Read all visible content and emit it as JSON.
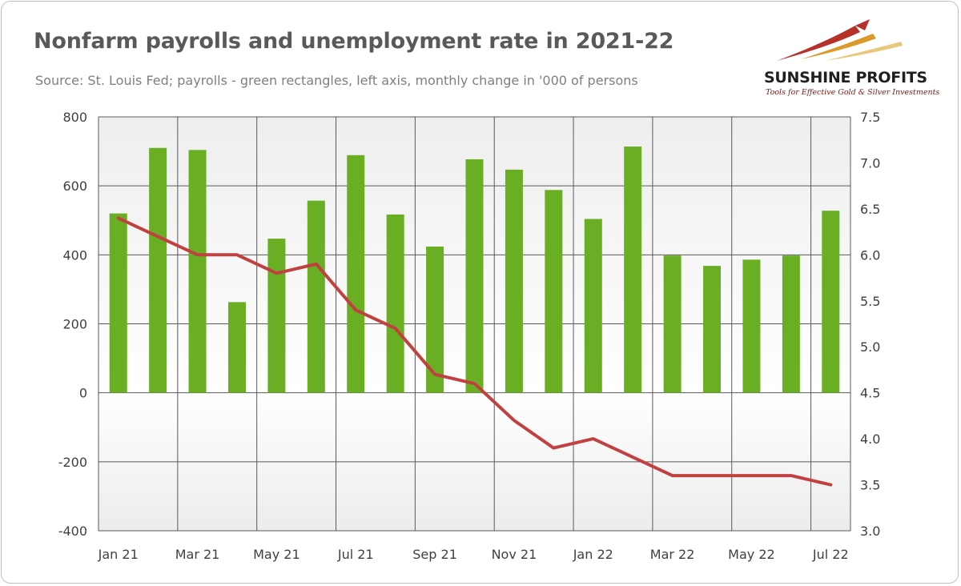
{
  "header": {
    "title": "Nonfarm payrolls and unemployment rate in 2021-22",
    "subtitle": "Source: St. Louis Fed; payrolls - green rectangles, left axis, monthly change in '000 of persons"
  },
  "logo": {
    "name": "SUNSHINE PROFITS",
    "tagline": "Tools for Effective Gold & Silver Investments"
  },
  "colors": {
    "bar": "#6aae24",
    "line": "#c0413f",
    "plot_bg_top": "#efefef",
    "plot_bg_bottom": "#ffffff",
    "grid": "#595959"
  },
  "chart_data": {
    "type": "bar",
    "title": "Nonfarm payrolls and unemployment rate in 2021-22",
    "subtitle": "Source: St. Louis Fed; payrolls - green rectangles, left axis, monthly change in '000 of persons",
    "categories": [
      "Jan 21",
      "Feb 21",
      "Mar 21",
      "Apr 21",
      "May 21",
      "Jun 21",
      "Jul 21",
      "Aug 21",
      "Sep 21",
      "Oct 21",
      "Nov 21",
      "Dec 21",
      "Jan 22",
      "Feb 22",
      "Mar 22",
      "Apr 22",
      "May 22",
      "Jun 22",
      "Jul 22"
    ],
    "x_tick_labels": [
      "Jan 21",
      "Mar 21",
      "May 21",
      "Jul 21",
      "Sep 21",
      "Nov 21",
      "Jan 22",
      "Mar 22",
      "May 22",
      "Jul 22"
    ],
    "series": [
      {
        "type": "bar",
        "axis": "left",
        "values": [
          520,
          710,
          704,
          263,
          447,
          557,
          689,
          517,
          424,
          677,
          647,
          588,
          504,
          714,
          398,
          368,
          386,
          398,
          528
        ]
      },
      {
        "type": "line",
        "axis": "right",
        "values": [
          6.4,
          6.2,
          6.0,
          6.0,
          5.8,
          5.9,
          5.4,
          5.2,
          4.7,
          4.6,
          4.2,
          3.9,
          4.0,
          3.8,
          3.6,
          3.6,
          3.6,
          3.6,
          3.5
        ]
      }
    ],
    "y_left": {
      "min": -400,
      "max": 800,
      "ticks": [
        -400,
        -200,
        0,
        200,
        400,
        600,
        800
      ]
    },
    "y_right": {
      "min": 3.0,
      "max": 7.5,
      "ticks": [
        "3.0",
        "3.5",
        "4.0",
        "4.5",
        "5.0",
        "5.5",
        "6.0",
        "6.5",
        "7.0",
        "7.5"
      ]
    },
    "xlabel": "",
    "ylabel": "",
    "grid": true
  }
}
